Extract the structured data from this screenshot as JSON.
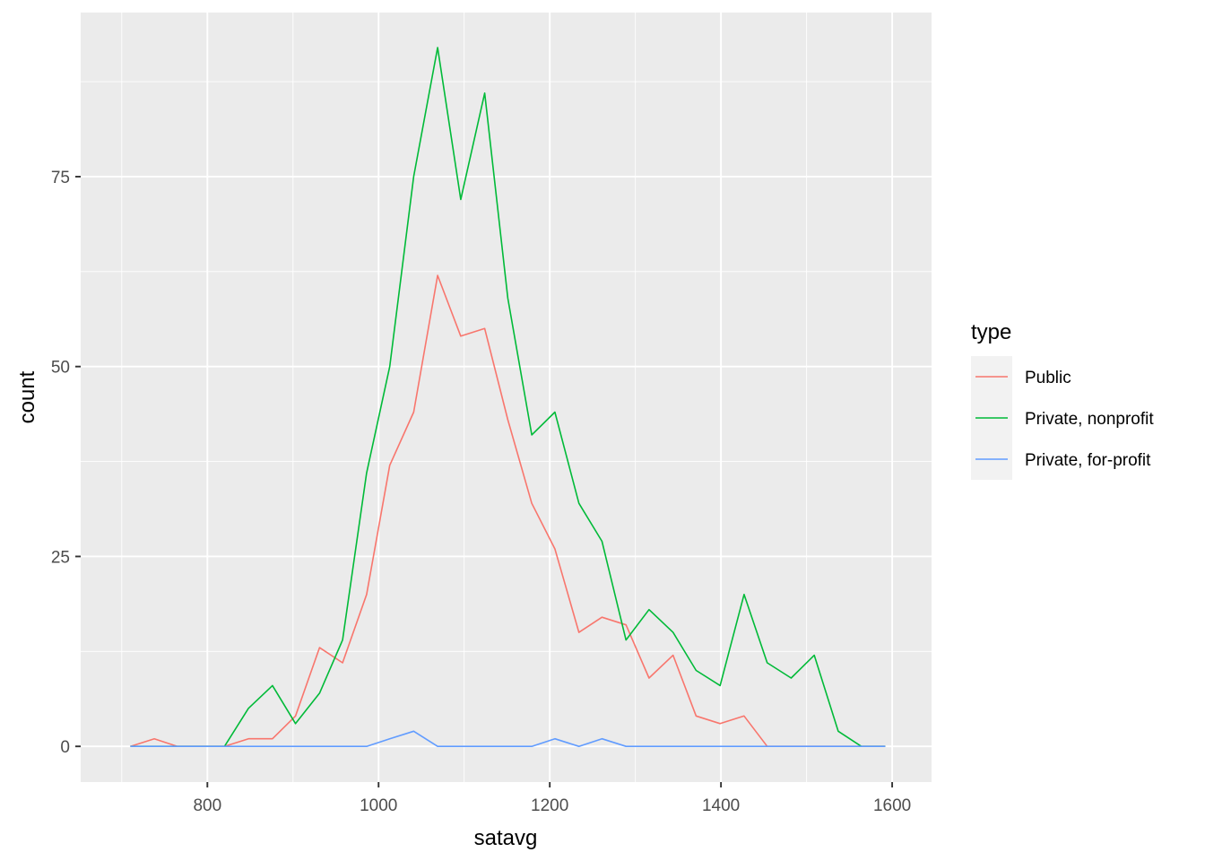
{
  "chart_data": {
    "type": "line",
    "xlabel": "satavg",
    "ylabel": "count",
    "xlim": [
      652,
      1646
    ],
    "ylim": [
      -4.7,
      96.6
    ],
    "x_ticks": [
      800,
      1000,
      1200,
      1400,
      1600
    ],
    "x_tick_labels": [
      "800",
      "1000",
      "1200",
      "1400",
      "1600"
    ],
    "y_ticks": [
      0,
      25,
      50,
      75
    ],
    "y_tick_labels": [
      "0",
      "25",
      "50",
      "75"
    ],
    "grid": true,
    "legend": {
      "title": "type",
      "position": "right"
    },
    "x": [
      710,
      738,
      765,
      793,
      820,
      848,
      876,
      903,
      931,
      958,
      986,
      1013,
      1041,
      1069,
      1096,
      1124,
      1151,
      1179,
      1206,
      1234,
      1261,
      1289,
      1316,
      1344,
      1371,
      1399,
      1427,
      1454,
      1482,
      1509,
      1537,
      1564,
      1592
    ],
    "series": [
      {
        "name": "Public",
        "color": "#F8766D",
        "values": [
          0,
          1,
          0,
          0,
          0,
          1,
          1,
          4,
          13,
          11,
          20,
          37,
          44,
          62,
          54,
          55,
          43,
          32,
          26,
          15,
          17,
          16,
          9,
          12,
          4,
          3,
          4,
          0,
          0,
          0,
          0,
          0,
          0
        ]
      },
      {
        "name": "Private, nonprofit",
        "color": "#00BA38",
        "values": [
          0,
          0,
          0,
          0,
          0,
          5,
          8,
          3,
          7,
          14,
          36,
          50,
          75,
          92,
          72,
          86,
          59,
          41,
          44,
          32,
          27,
          14,
          18,
          15,
          10,
          8,
          20,
          11,
          9,
          12,
          2,
          0,
          0
        ]
      },
      {
        "name": "Private, for-profit",
        "color": "#619CFF",
        "values": [
          0,
          0,
          0,
          0,
          0,
          0,
          0,
          0,
          0,
          0,
          0,
          1,
          2,
          0,
          0,
          0,
          0,
          0,
          1,
          0,
          1,
          0,
          0,
          0,
          0,
          0,
          0,
          0,
          0,
          0,
          0,
          0,
          0
        ]
      }
    ]
  }
}
